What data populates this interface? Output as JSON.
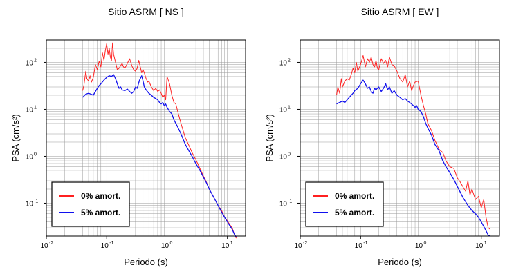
{
  "chart_data": [
    {
      "type": "line",
      "title": "Sitio ASRM [ NS ]",
      "xlabel": "Periodo (s)",
      "ylabel": "PSA (cm/s²)",
      "xscale": "log",
      "yscale": "log",
      "xlim": [
        0.01,
        20
      ],
      "ylim": [
        0.02,
        300
      ],
      "grid": true,
      "legend_position": "bottom-left",
      "xticks": [
        {
          "base": "10",
          "exp": "-2"
        },
        {
          "base": "10",
          "exp": "-1"
        },
        {
          "base": "10",
          "exp": "0"
        },
        {
          "base": "10",
          "exp": "1"
        }
      ],
      "yticks": [
        {
          "base": "10",
          "exp": "-1"
        },
        {
          "base": "10",
          "exp": "0"
        },
        {
          "base": "10",
          "exp": "1"
        },
        {
          "base": "10",
          "exp": "2"
        }
      ],
      "series": [
        {
          "name": "0% amort.",
          "color": "#ff2020",
          "x": [
            0.04,
            0.042,
            0.045,
            0.047,
            0.05,
            0.053,
            0.056,
            0.06,
            0.065,
            0.07,
            0.075,
            0.08,
            0.085,
            0.09,
            0.095,
            0.1,
            0.105,
            0.11,
            0.115,
            0.12,
            0.125,
            0.13,
            0.14,
            0.15,
            0.16,
            0.17,
            0.18,
            0.19,
            0.2,
            0.22,
            0.24,
            0.26,
            0.28,
            0.3,
            0.32,
            0.34,
            0.36,
            0.38,
            0.4,
            0.42,
            0.45,
            0.48,
            0.5,
            0.55,
            0.6,
            0.65,
            0.7,
            0.75,
            0.8,
            0.85,
            0.9,
            0.95,
            1.0,
            1.1,
            1.2,
            1.3,
            1.4,
            1.5,
            1.7,
            2.0,
            2.3,
            2.6,
            3.0,
            3.5,
            4.0,
            4.5,
            5.0,
            6.0,
            7.0,
            8.0,
            9.0,
            10.0,
            11.0,
            12.0,
            13.0,
            14.0
          ],
          "y": [
            25,
            33,
            65,
            45,
            40,
            52,
            38,
            48,
            90,
            70,
            105,
            80,
            160,
            110,
            180,
            250,
            150,
            200,
            130,
            110,
            260,
            150,
            100,
            70,
            75,
            85,
            95,
            80,
            75,
            95,
            120,
            85,
            70,
            65,
            75,
            110,
            80,
            60,
            70,
            60,
            45,
            38,
            40,
            30,
            25,
            28,
            24,
            26,
            22,
            18,
            20,
            16,
            50,
            35,
            20,
            14,
            13,
            9,
            5,
            2.5,
            1.7,
            1.2,
            0.85,
            0.55,
            0.38,
            0.28,
            0.2,
            0.13,
            0.09,
            0.07,
            0.05,
            0.042,
            0.035,
            0.03,
            0.022,
            0.018
          ]
        },
        {
          "name": "5% amort.",
          "color": "#1010ee",
          "x": [
            0.04,
            0.045,
            0.05,
            0.055,
            0.06,
            0.065,
            0.07,
            0.075,
            0.08,
            0.09,
            0.1,
            0.11,
            0.12,
            0.13,
            0.14,
            0.15,
            0.16,
            0.17,
            0.18,
            0.2,
            0.22,
            0.24,
            0.26,
            0.28,
            0.3,
            0.32,
            0.35,
            0.38,
            0.4,
            0.42,
            0.45,
            0.5,
            0.55,
            0.6,
            0.65,
            0.7,
            0.75,
            0.8,
            0.85,
            0.9,
            0.95,
            1.0,
            1.1,
            1.2,
            1.3,
            1.5,
            1.7,
            2.0,
            2.3,
            2.6,
            3.0,
            3.5,
            4.0,
            4.5,
            5.0,
            6.0,
            7.0,
            8.0,
            9.0,
            10.0,
            11.0,
            12.0,
            13.0,
            14.0
          ],
          "y": [
            18,
            21,
            22,
            21,
            20,
            24,
            28,
            32,
            35,
            42,
            48,
            52,
            50,
            55,
            45,
            35,
            28,
            30,
            26,
            25,
            27,
            24,
            22,
            24,
            30,
            28,
            42,
            52,
            40,
            30,
            26,
            22,
            20,
            18,
            17,
            16,
            14,
            13,
            14,
            12,
            13,
            11,
            9,
            8,
            6,
            4.2,
            3.0,
            1.8,
            1.3,
            1.0,
            0.7,
            0.5,
            0.36,
            0.27,
            0.2,
            0.13,
            0.09,
            0.065,
            0.05,
            0.04,
            0.033,
            0.028,
            0.022,
            0.019
          ]
        }
      ]
    },
    {
      "type": "line",
      "title": "Sitio ASRM [ EW ]",
      "xlabel": "Periodo (s)",
      "ylabel": "PSA (cm/s²)",
      "xscale": "log",
      "yscale": "log",
      "xlim": [
        0.01,
        20
      ],
      "ylim": [
        0.02,
        300
      ],
      "grid": true,
      "legend_position": "bottom-left",
      "xticks": [
        {
          "base": "10",
          "exp": "-2"
        },
        {
          "base": "10",
          "exp": "-1"
        },
        {
          "base": "10",
          "exp": "0"
        },
        {
          "base": "10",
          "exp": "1"
        }
      ],
      "yticks": [
        {
          "base": "10",
          "exp": "-1"
        },
        {
          "base": "10",
          "exp": "0"
        },
        {
          "base": "10",
          "exp": "1"
        },
        {
          "base": "10",
          "exp": "2"
        }
      ],
      "series": [
        {
          "name": "0% amort.",
          "color": "#ff2020",
          "x": [
            0.04,
            0.042,
            0.045,
            0.048,
            0.05,
            0.055,
            0.06,
            0.065,
            0.07,
            0.075,
            0.08,
            0.085,
            0.09,
            0.1,
            0.11,
            0.12,
            0.13,
            0.14,
            0.15,
            0.16,
            0.17,
            0.18,
            0.19,
            0.2,
            0.22,
            0.24,
            0.26,
            0.28,
            0.3,
            0.33,
            0.36,
            0.4,
            0.45,
            0.5,
            0.55,
            0.6,
            0.65,
            0.7,
            0.75,
            0.8,
            0.9,
            1.0,
            1.1,
            1.2,
            1.3,
            1.5,
            1.7,
            2.0,
            2.3,
            2.6,
            3.0,
            3.5,
            4.0,
            4.5,
            5.0,
            5.5,
            6.0,
            6.5,
            7.0,
            8.0,
            9.0,
            10.0,
            11.0,
            12.0,
            13.0,
            14.0
          ],
          "y": [
            20,
            30,
            22,
            45,
            30,
            40,
            45,
            42,
            55,
            75,
            60,
            100,
            65,
            90,
            140,
            80,
            120,
            100,
            130,
            90,
            80,
            110,
            75,
            70,
            120,
            95,
            110,
            80,
            130,
            90,
            85,
            65,
            45,
            38,
            55,
            30,
            40,
            25,
            32,
            38,
            40,
            20,
            12,
            8,
            5,
            3.5,
            2.2,
            1.4,
            1.2,
            0.8,
            0.6,
            0.55,
            0.35,
            0.28,
            0.22,
            0.18,
            0.3,
            0.15,
            0.2,
            0.12,
            0.14,
            0.08,
            0.12,
            0.05,
            0.03,
            0.028
          ]
        },
        {
          "name": "5% amort.",
          "color": "#1010ee",
          "x": [
            0.04,
            0.045,
            0.05,
            0.055,
            0.06,
            0.065,
            0.07,
            0.075,
            0.08,
            0.09,
            0.1,
            0.11,
            0.12,
            0.13,
            0.14,
            0.15,
            0.16,
            0.17,
            0.18,
            0.2,
            0.22,
            0.24,
            0.26,
            0.28,
            0.3,
            0.33,
            0.36,
            0.4,
            0.45,
            0.5,
            0.55,
            0.6,
            0.65,
            0.7,
            0.75,
            0.8,
            0.85,
            0.9,
            1.0,
            1.1,
            1.2,
            1.3,
            1.5,
            1.7,
            2.0,
            2.3,
            2.6,
            3.0,
            3.5,
            4.0,
            4.5,
            5.0,
            6.0,
            7.0,
            8.0,
            9.0,
            10.0,
            11.0,
            12.0,
            13.0,
            14.0
          ],
          "y": [
            13,
            14,
            15,
            14,
            16,
            18,
            20,
            22,
            25,
            28,
            35,
            42,
            35,
            28,
            30,
            24,
            22,
            28,
            26,
            30,
            24,
            28,
            35,
            26,
            30,
            22,
            25,
            20,
            18,
            16,
            17,
            15,
            14,
            13,
            12,
            11,
            12,
            10,
            9,
            7,
            5,
            4,
            2.8,
            1.8,
            1.3,
            0.8,
            0.6,
            0.45,
            0.32,
            0.23,
            0.17,
            0.13,
            0.09,
            0.07,
            0.06,
            0.05,
            0.04,
            0.032,
            0.026,
            0.021,
            0.02
          ]
        }
      ]
    }
  ]
}
